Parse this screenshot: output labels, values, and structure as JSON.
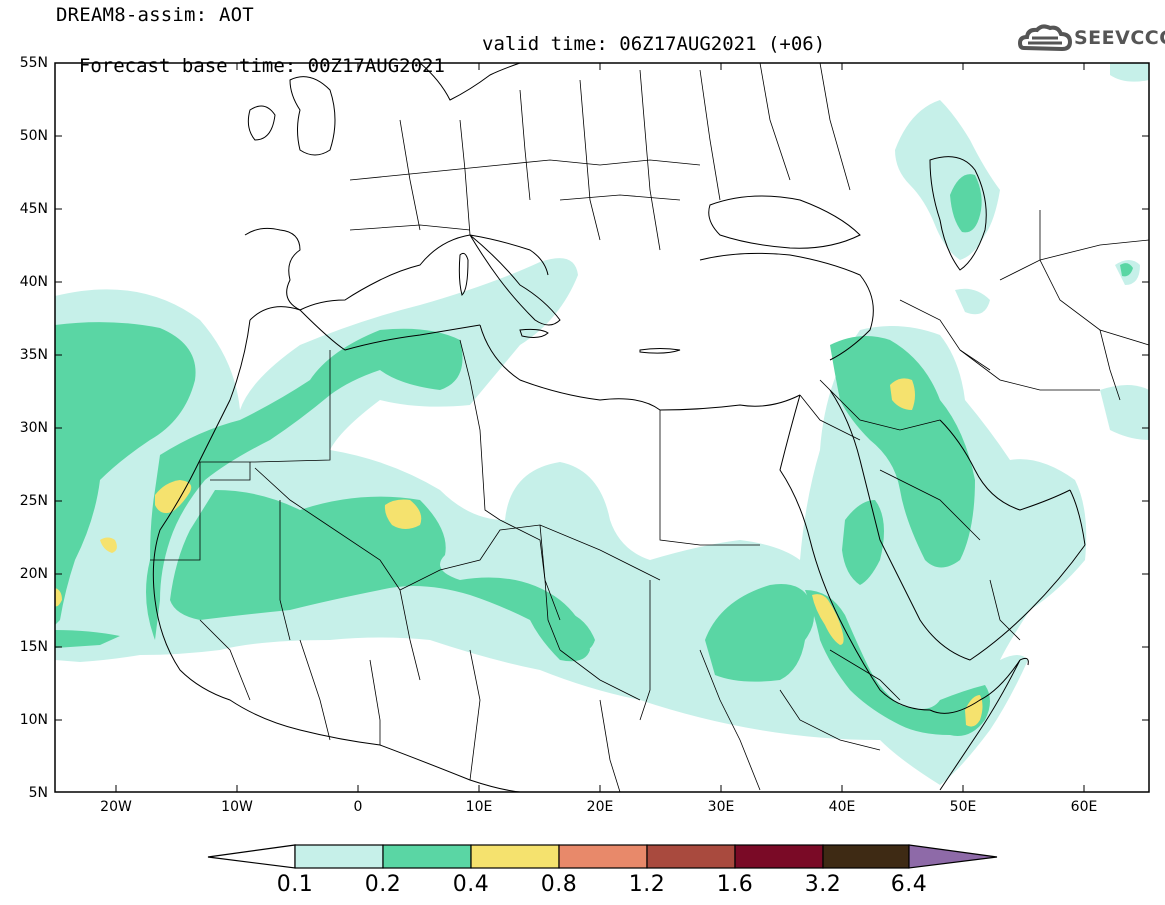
{
  "header": {
    "title": "DREAM8-assim: AOT",
    "forecast_base": "Forecast base time: 00Z17AUG2021",
    "valid_time": "valid time: 06Z17AUG2021 (+06)"
  },
  "logo": {
    "text": "SEEVCCC"
  },
  "axes": {
    "lat_labels": [
      "55N",
      "50N",
      "45N",
      "40N",
      "35N",
      "30N",
      "25N",
      "20N",
      "15N",
      "10N",
      "5N"
    ],
    "lon_labels": [
      "20W",
      "10W",
      "0",
      "10E",
      "20E",
      "30E",
      "40E",
      "50E",
      "60E"
    ]
  },
  "colorbar": {
    "labels": [
      "0.1",
      "0.2",
      "0.4",
      "0.8",
      "1.2",
      "1.6",
      "3.2",
      "6.4"
    ],
    "colors": [
      "#c6f0e9",
      "#5ad6a4",
      "#f5e26e",
      "#e8896a",
      "#a94a3e",
      "#7a0a26",
      "#3e2a14",
      "#8e6aa8"
    ]
  },
  "colors": {
    "level_01": "#c6f0e9",
    "level_02": "#5ad6a4",
    "level_04": "#f5e26e"
  }
}
